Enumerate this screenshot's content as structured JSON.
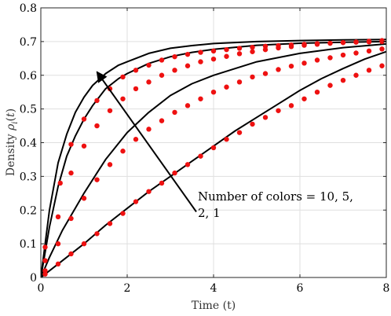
{
  "chart_data": {
    "type": "line",
    "title": "",
    "xlabel": "Time (t)",
    "ylabel": "Density ρ_i(t)",
    "xlim": [
      0,
      8
    ],
    "ylim": [
      0,
      0.8
    ],
    "xticks": [
      0,
      2,
      4,
      6,
      8
    ],
    "xtick_labels": [
      "0",
      "2",
      "4",
      "6",
      "8"
    ],
    "yticks": [
      0,
      0.1,
      0.2,
      0.3,
      0.4,
      0.5,
      0.6,
      0.7,
      0.8
    ],
    "ytick_labels": [
      "0",
      "0.1",
      "0.2",
      "0.3",
      "0.4",
      "0.5",
      "0.6",
      "0.7",
      "0.8"
    ],
    "grid": true,
    "annotation": {
      "lines": [
        "Number of colors = 10, 5,",
        "2, 1"
      ],
      "arrow_from": [
        3.6,
        0.195
      ],
      "arrow_to": [
        1.3,
        0.61
      ]
    },
    "line_color": "#000000",
    "marker_color": "#ee1111",
    "series": [
      {
        "style": "line",
        "x": [
          0,
          0.2,
          0.4,
          0.6,
          0.8,
          1.0,
          1.2,
          1.5,
          1.8,
          2.0,
          2.5,
          3.0,
          3.5,
          4.0,
          5.0,
          6.0,
          7.0,
          8.0
        ],
        "values": [
          0,
          0.2,
          0.34,
          0.425,
          0.49,
          0.535,
          0.57,
          0.605,
          0.63,
          0.64,
          0.665,
          0.68,
          0.688,
          0.694,
          0.7,
          0.703,
          0.705,
          0.706
        ]
      },
      {
        "style": "line",
        "x": [
          0,
          0.2,
          0.4,
          0.6,
          0.8,
          1.0,
          1.2,
          1.5,
          1.8,
          2.0,
          2.5,
          3.0,
          3.5,
          4.0,
          5.0,
          6.0,
          7.0,
          8.0
        ],
        "values": [
          0,
          0.15,
          0.27,
          0.36,
          0.42,
          0.47,
          0.51,
          0.56,
          0.59,
          0.605,
          0.635,
          0.655,
          0.668,
          0.677,
          0.689,
          0.695,
          0.698,
          0.7
        ]
      },
      {
        "style": "line",
        "x": [
          0,
          0.2,
          0.5,
          1.0,
          1.5,
          2.0,
          2.5,
          3.0,
          3.5,
          4.0,
          4.5,
          5.0,
          6.0,
          7.0,
          8.0
        ],
        "values": [
          0,
          0.06,
          0.14,
          0.25,
          0.35,
          0.43,
          0.49,
          0.54,
          0.575,
          0.6,
          0.62,
          0.64,
          0.665,
          0.682,
          0.693
        ]
      },
      {
        "style": "line",
        "x": [
          0,
          0.5,
          1.0,
          1.5,
          2.0,
          2.5,
          3.0,
          3.5,
          4.0,
          4.5,
          5.0,
          5.5,
          6.0,
          6.5,
          7.0,
          7.5,
          8.0
        ],
        "values": [
          0,
          0.05,
          0.1,
          0.155,
          0.205,
          0.255,
          0.3,
          0.345,
          0.39,
          0.435,
          0.475,
          0.515,
          0.555,
          0.59,
          0.62,
          0.648,
          0.67
        ]
      },
      {
        "style": "markers",
        "x": [
          0.1,
          0.45,
          0.7,
          1.0,
          1.3,
          1.6,
          1.9,
          2.2,
          2.5,
          2.8,
          3.1,
          3.4,
          3.7,
          4.0,
          4.3,
          4.6,
          4.9,
          5.2,
          5.5,
          5.8,
          6.1,
          6.4,
          6.7,
          7.0,
          7.3,
          7.6,
          7.9
        ],
        "values": [
          0.09,
          0.28,
          0.395,
          0.47,
          0.525,
          0.56,
          0.595,
          0.615,
          0.63,
          0.645,
          0.655,
          0.662,
          0.668,
          0.672,
          0.676,
          0.68,
          0.683,
          0.686,
          0.688,
          0.69,
          0.692,
          0.694,
          0.695,
          0.697,
          0.698,
          0.699,
          0.7
        ]
      },
      {
        "style": "markers",
        "x": [
          0.1,
          0.4,
          0.7,
          1.0,
          1.3,
          1.6,
          1.9,
          2.2,
          2.5,
          2.8,
          3.1,
          3.4,
          3.7,
          4.0,
          4.3,
          4.6,
          4.9,
          5.2,
          5.5,
          5.8,
          6.1,
          6.4,
          6.7,
          7.0,
          7.3,
          7.6,
          7.9
        ],
        "values": [
          0.05,
          0.18,
          0.31,
          0.39,
          0.45,
          0.495,
          0.53,
          0.56,
          0.58,
          0.6,
          0.615,
          0.628,
          0.64,
          0.648,
          0.656,
          0.664,
          0.67,
          0.676,
          0.681,
          0.685,
          0.689,
          0.692,
          0.695,
          0.697,
          0.699,
          0.701,
          0.703
        ]
      },
      {
        "style": "markers",
        "x": [
          0.1,
          0.4,
          0.7,
          1.0,
          1.3,
          1.6,
          1.9,
          2.2,
          2.5,
          2.8,
          3.1,
          3.4,
          3.7,
          4.0,
          4.3,
          4.6,
          4.9,
          5.2,
          5.5,
          5.8,
          6.1,
          6.4,
          6.7,
          7.0,
          7.3,
          7.6,
          7.9
        ],
        "values": [
          0.02,
          0.1,
          0.175,
          0.235,
          0.29,
          0.335,
          0.375,
          0.41,
          0.44,
          0.465,
          0.49,
          0.51,
          0.53,
          0.55,
          0.565,
          0.58,
          0.595,
          0.605,
          0.617,
          0.627,
          0.636,
          0.645,
          0.652,
          0.66,
          0.666,
          0.672,
          0.678
        ]
      },
      {
        "style": "markers",
        "x": [
          0.1,
          0.4,
          0.7,
          1.0,
          1.3,
          1.6,
          1.9,
          2.2,
          2.5,
          2.8,
          3.1,
          3.4,
          3.7,
          4.0,
          4.3,
          4.6,
          4.9,
          5.2,
          5.5,
          5.8,
          6.1,
          6.4,
          6.7,
          7.0,
          7.3,
          7.6,
          7.9
        ],
        "values": [
          0.01,
          0.04,
          0.07,
          0.1,
          0.13,
          0.16,
          0.19,
          0.225,
          0.255,
          0.28,
          0.31,
          0.335,
          0.36,
          0.385,
          0.41,
          0.43,
          0.455,
          0.475,
          0.495,
          0.51,
          0.53,
          0.55,
          0.57,
          0.585,
          0.6,
          0.615,
          0.628
        ]
      }
    ]
  }
}
